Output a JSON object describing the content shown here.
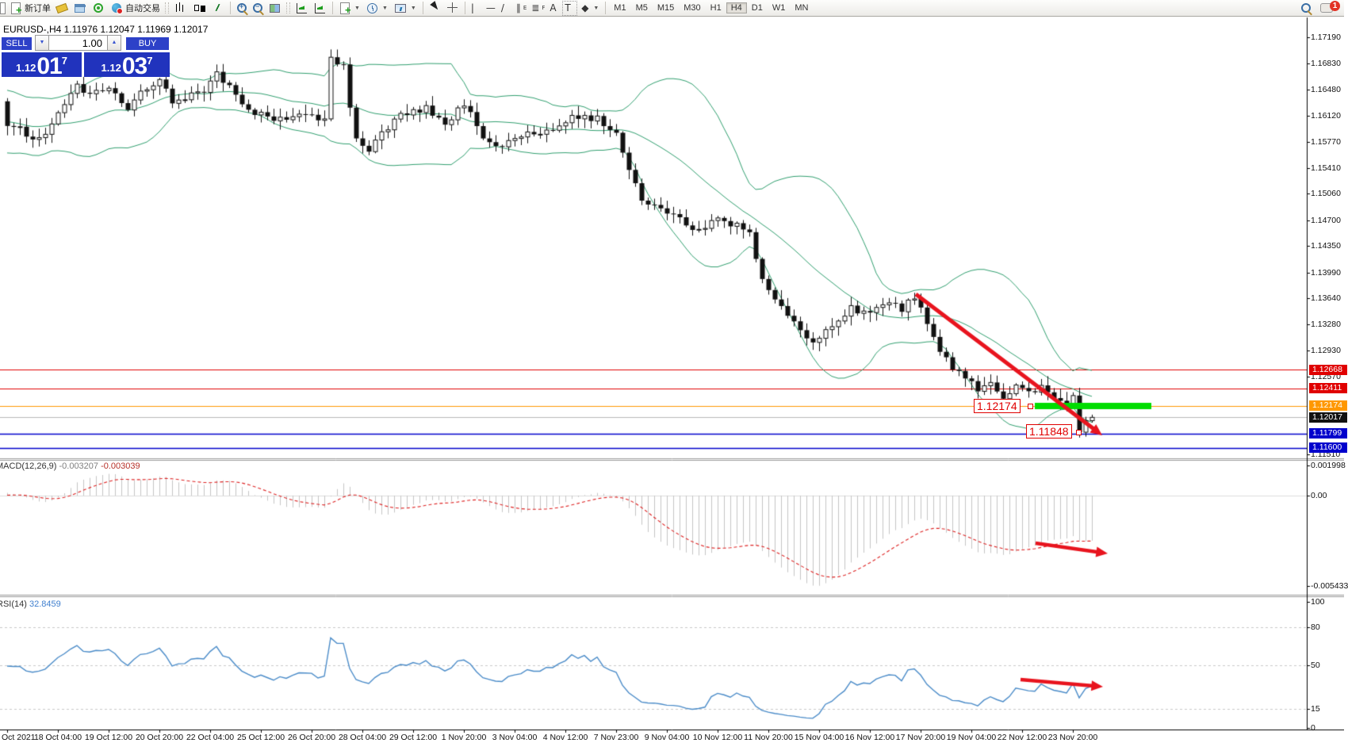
{
  "toolbar": {
    "new_order_label": "新订单",
    "auto_trading_label": "自动交易",
    "timeframes": [
      "M1",
      "M5",
      "M15",
      "M30",
      "H1",
      "H4",
      "D1",
      "W1",
      "MN"
    ],
    "active_timeframe": "H4",
    "notification_count": "1"
  },
  "chart": {
    "symbol_info": "EURUSD-,H4  1.11976 1.12047 1.11969 1.12017"
  },
  "trade": {
    "sell_label": "SELL",
    "buy_label": "BUY",
    "volume": "1.00",
    "sell_small": "1.12",
    "sell_big": "01",
    "sell_sup": "7",
    "buy_small": "1.12",
    "buy_big": "03",
    "buy_sup": "7"
  },
  "price_axis_ticks": [
    "1.17190",
    "1.16830",
    "1.16480",
    "1.16120",
    "1.15770",
    "1.15410",
    "1.15060",
    "1.14700",
    "1.14350",
    "1.13990",
    "1.13640",
    "1.13280",
    "1.12930",
    "1.12570",
    "1.11510"
  ],
  "levels": [
    {
      "label": "1.12668",
      "price": 1.12668,
      "line_color": "#e00000",
      "badge_bg": "#e00000"
    },
    {
      "label": "1.12411",
      "price": 1.12411,
      "line_color": "#e00000",
      "badge_bg": "#e00000"
    },
    {
      "label": "1.12174",
      "price": 1.12174,
      "line_color": "#ff9800",
      "badge_bg": "#ff9800"
    },
    {
      "label": "1.12017",
      "price": 1.12017,
      "line_color": "#b8b8b8",
      "badge_bg": "#111111"
    },
    {
      "label": "1.11799",
      "price": 1.11799,
      "line_color": "#0000cc",
      "badge_bg": "#0000cc"
    },
    {
      "label": "1.11600",
      "price": 1.116,
      "line_color": "#0000cc",
      "badge_bg": "#0000cc"
    }
  ],
  "callouts": [
    {
      "text": "1.12174"
    },
    {
      "text": "1.11848"
    }
  ],
  "macd": {
    "name": "MACD(12,26,9)",
    "value1": "-0.003207",
    "value2": "-0.003039",
    "axis_labels": [
      "0.001998",
      "0.00",
      "-0.005433"
    ]
  },
  "rsi": {
    "name": "RSI(14)",
    "value": "32.8459",
    "axis_labels": [
      "100",
      "80",
      "50",
      "15",
      "0"
    ],
    "level_values": [
      80,
      50,
      15
    ]
  },
  "time_labels": [
    "Oct 2021",
    "18 Oct 04:00",
    "19 Oct 12:00",
    "20 Oct 20:00",
    "22 Oct 04:00",
    "25 Oct 12:00",
    "26 Oct 20:00",
    "28 Oct 04:00",
    "29 Oct 12:00",
    "1 Nov 20:00",
    "3 Nov 04:00",
    "4 Nov 12:00",
    "7 Nov 23:00",
    "9 Nov 04:00",
    "10 Nov 12:00",
    "11 Nov 20:00",
    "15 Nov 04:00",
    "16 Nov 12:00",
    "17 Nov 20:00",
    "19 Nov 04:00",
    "22 Nov 12:00",
    "23 Nov 20:00"
  ],
  "chart_data": {
    "type": "candlestick",
    "symbol": "EURUSD",
    "timeframe": "H4",
    "last_ohlc": {
      "open": 1.11976,
      "high": 1.12047,
      "low": 1.11969,
      "close": 1.12017
    },
    "price_axis_range": {
      "min": 1.1151,
      "max": 1.1719
    },
    "indicators": [
      {
        "name": "Bollinger Bands",
        "period": 20,
        "deviation": 2,
        "color": "#2f9e6e"
      },
      {
        "name": "MACD",
        "fast": 12,
        "slow": 26,
        "signal": 9,
        "current": [
          -0.003207,
          -0.003039
        ],
        "histogram_color": "#c4c4c4",
        "signal_color": "#dd2222"
      },
      {
        "name": "RSI",
        "period": 14,
        "current": 32.8459,
        "color": "#4a8bc8"
      }
    ],
    "annotations": {
      "support_zone_price": 1.12174,
      "support_zone_color": "#00dd00",
      "trend_arrow_color": "#e8141e",
      "labels": [
        "1.12174",
        "1.11848"
      ]
    },
    "close_waypoints": [
      [
        0,
        1.1602
      ],
      [
        3,
        1.1588
      ],
      [
        5,
        1.1578
      ],
      [
        8,
        1.1614
      ],
      [
        11,
        1.1656
      ],
      [
        13,
        1.164
      ],
      [
        16,
        1.1649
      ],
      [
        19,
        1.1624
      ],
      [
        22,
        1.1652
      ],
      [
        24,
        1.1658
      ],
      [
        26,
        1.1631
      ],
      [
        29,
        1.164
      ],
      [
        31,
        1.1648
      ],
      [
        33,
        1.1671
      ],
      [
        36,
        1.1638
      ],
      [
        39,
        1.1616
      ],
      [
        43,
        1.1608
      ],
      [
        47,
        1.1616
      ],
      [
        50,
        1.1606
      ],
      [
        51,
        1.1692
      ],
      [
        53,
        1.1678
      ],
      [
        55,
        1.1577
      ],
      [
        57,
        1.1563
      ],
      [
        60,
        1.1598
      ],
      [
        63,
        1.1617
      ],
      [
        66,
        1.1622
      ],
      [
        69,
        1.1598
      ],
      [
        72,
        1.1628
      ],
      [
        75,
        1.1581
      ],
      [
        78,
        1.1571
      ],
      [
        82,
        1.1586
      ],
      [
        86,
        1.1596
      ],
      [
        89,
        1.1612
      ],
      [
        93,
        1.1607
      ],
      [
        96,
        1.1586
      ],
      [
        98,
        1.154
      ],
      [
        100,
        1.1498
      ],
      [
        103,
        1.1486
      ],
      [
        106,
        1.147
      ],
      [
        109,
        1.1457
      ],
      [
        112,
        1.1471
      ],
      [
        115,
        1.1463
      ],
      [
        117,
        1.1455
      ],
      [
        119,
        1.1385
      ],
      [
        122,
        1.1358
      ],
      [
        125,
        1.1318
      ],
      [
        127,
        1.1302
      ],
      [
        130,
        1.1325
      ],
      [
        133,
        1.135
      ],
      [
        136,
        1.1344
      ],
      [
        139,
        1.1357
      ],
      [
        141,
        1.135
      ],
      [
        143,
        1.1363
      ],
      [
        145,
        1.133
      ],
      [
        147,
        1.129
      ],
      [
        149,
        1.1268
      ],
      [
        151,
        1.1255
      ],
      [
        153,
        1.1238
      ],
      [
        155,
        1.1252
      ],
      [
        157,
        1.123
      ],
      [
        159,
        1.1247
      ],
      [
        161,
        1.1233
      ],
      [
        163,
        1.1247
      ],
      [
        165,
        1.123
      ],
      [
        167,
        1.1222
      ],
      [
        168,
        1.1232
      ],
      [
        169,
        1.1186
      ],
      [
        170,
        1.1196
      ],
      [
        171,
        1.12017
      ]
    ]
  }
}
